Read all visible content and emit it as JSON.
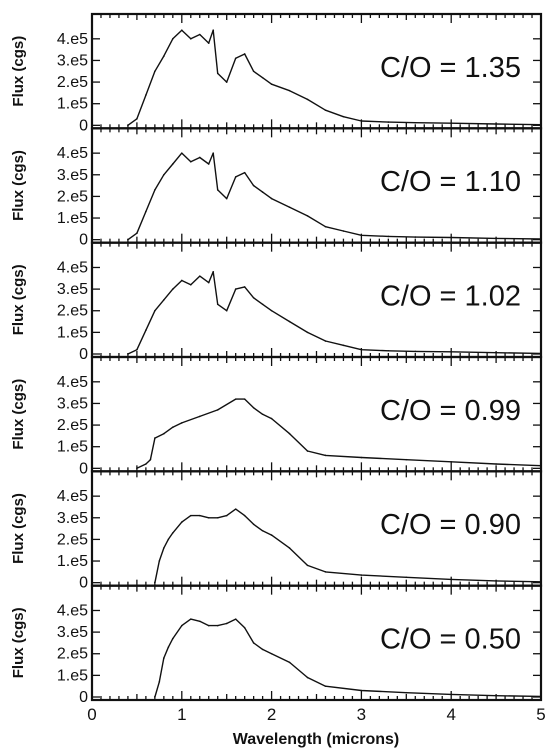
{
  "chart_data": {
    "type": "line",
    "layout": "six vertically stacked panels sharing a common x axis",
    "xlabel": "Wavelength (microns)",
    "ylabel": "Flux (cgs)",
    "xlim": [
      0,
      5
    ],
    "ylim": [
      0,
      450000
    ],
    "x_ticks": [
      "0",
      "1",
      "2",
      "3",
      "4",
      "5"
    ],
    "y_ticks": [
      "0",
      "1.e5",
      "2.e5",
      "3.e5",
      "4.e5"
    ],
    "y_tick_values": [
      0,
      100000,
      200000,
      300000,
      400000
    ],
    "grid": false,
    "line_color": "#111111",
    "panels": [
      {
        "annotation": "C/O = 1.35",
        "series": [
          {
            "x": [
              0.4,
              0.5,
              0.6,
              0.7,
              0.8,
              0.9,
              1.0,
              1.1,
              1.2,
              1.3,
              1.35,
              1.4,
              1.5,
              1.6,
              1.7,
              1.8,
              1.9,
              2.0,
              2.2,
              2.4,
              2.6,
              2.8,
              3.0,
              3.3,
              3.6,
              4.0,
              4.5,
              5.0
            ],
            "y": [
              0,
              30000,
              140000,
              250000,
              320000,
              400000,
              440000,
              400000,
              420000,
              380000,
              440000,
              240000,
              200000,
              310000,
              330000,
              250000,
              220000,
              190000,
              160000,
              120000,
              70000,
              40000,
              20000,
              15000,
              12000,
              10000,
              6000,
              3000
            ]
          }
        ]
      },
      {
        "annotation": "C/O = 1.10",
        "series": [
          {
            "x": [
              0.4,
              0.5,
              0.6,
              0.7,
              0.8,
              0.9,
              1.0,
              1.1,
              1.2,
              1.3,
              1.35,
              1.4,
              1.5,
              1.6,
              1.7,
              1.8,
              1.9,
              2.0,
              2.2,
              2.4,
              2.6,
              2.8,
              3.0,
              3.3,
              3.6,
              4.0,
              4.5,
              5.0
            ],
            "y": [
              0,
              30000,
              130000,
              230000,
              300000,
              350000,
              400000,
              360000,
              380000,
              350000,
              400000,
              230000,
              190000,
              290000,
              310000,
              250000,
              220000,
              190000,
              150000,
              110000,
              60000,
              40000,
              20000,
              15000,
              12000,
              10000,
              6000,
              3000
            ]
          }
        ]
      },
      {
        "annotation": "C/O = 1.02",
        "series": [
          {
            "x": [
              0.4,
              0.5,
              0.6,
              0.7,
              0.8,
              0.9,
              1.0,
              1.1,
              1.2,
              1.3,
              1.35,
              1.4,
              1.5,
              1.6,
              1.7,
              1.8,
              1.9,
              2.0,
              2.2,
              2.4,
              2.6,
              2.8,
              3.0,
              3.3,
              3.6,
              4.0,
              4.5,
              5.0
            ],
            "y": [
              0,
              20000,
              110000,
              200000,
              250000,
              300000,
              340000,
              320000,
              360000,
              330000,
              380000,
              230000,
              200000,
              300000,
              310000,
              260000,
              230000,
              200000,
              150000,
              100000,
              60000,
              40000,
              20000,
              15000,
              12000,
              10000,
              6000,
              3000
            ]
          }
        ]
      },
      {
        "annotation": "C/O = 0.99",
        "series": [
          {
            "x": [
              0.5,
              0.6,
              0.65,
              0.7,
              0.8,
              0.9,
              1.0,
              1.2,
              1.4,
              1.6,
              1.7,
              1.8,
              1.9,
              2.0,
              2.2,
              2.4,
              2.6,
              3.0,
              3.5,
              4.0,
              4.5,
              5.0
            ],
            "y": [
              0,
              20000,
              40000,
              140000,
              160000,
              190000,
              210000,
              240000,
              270000,
              320000,
              320000,
              280000,
              250000,
              230000,
              160000,
              80000,
              60000,
              50000,
              40000,
              30000,
              20000,
              12000
            ]
          }
        ]
      },
      {
        "annotation": "C/O = 0.90",
        "series": [
          {
            "x": [
              0.7,
              0.75,
              0.8,
              0.85,
              0.9,
              1.0,
              1.1,
              1.2,
              1.3,
              1.4,
              1.5,
              1.6,
              1.7,
              1.8,
              1.9,
              2.0,
              2.2,
              2.4,
              2.6,
              3.0,
              3.5,
              4.0,
              4.5,
              5.0
            ],
            "y": [
              0,
              100000,
              160000,
              200000,
              230000,
              280000,
              310000,
              310000,
              300000,
              300000,
              310000,
              340000,
              310000,
              270000,
              240000,
              220000,
              160000,
              80000,
              50000,
              35000,
              25000,
              15000,
              8000,
              4000
            ]
          }
        ]
      },
      {
        "annotation": "C/O = 0.50",
        "series": [
          {
            "x": [
              0.7,
              0.75,
              0.8,
              0.85,
              0.9,
              1.0,
              1.1,
              1.2,
              1.3,
              1.4,
              1.5,
              1.6,
              1.7,
              1.8,
              1.9,
              2.0,
              2.2,
              2.4,
              2.6,
              3.0,
              3.5,
              4.0,
              4.5,
              5.0
            ],
            "y": [
              0,
              70000,
              180000,
              230000,
              270000,
              330000,
              360000,
              350000,
              330000,
              330000,
              340000,
              360000,
              320000,
              250000,
              220000,
              200000,
              160000,
              90000,
              50000,
              30000,
              20000,
              12000,
              6000,
              3000
            ]
          }
        ]
      }
    ]
  }
}
